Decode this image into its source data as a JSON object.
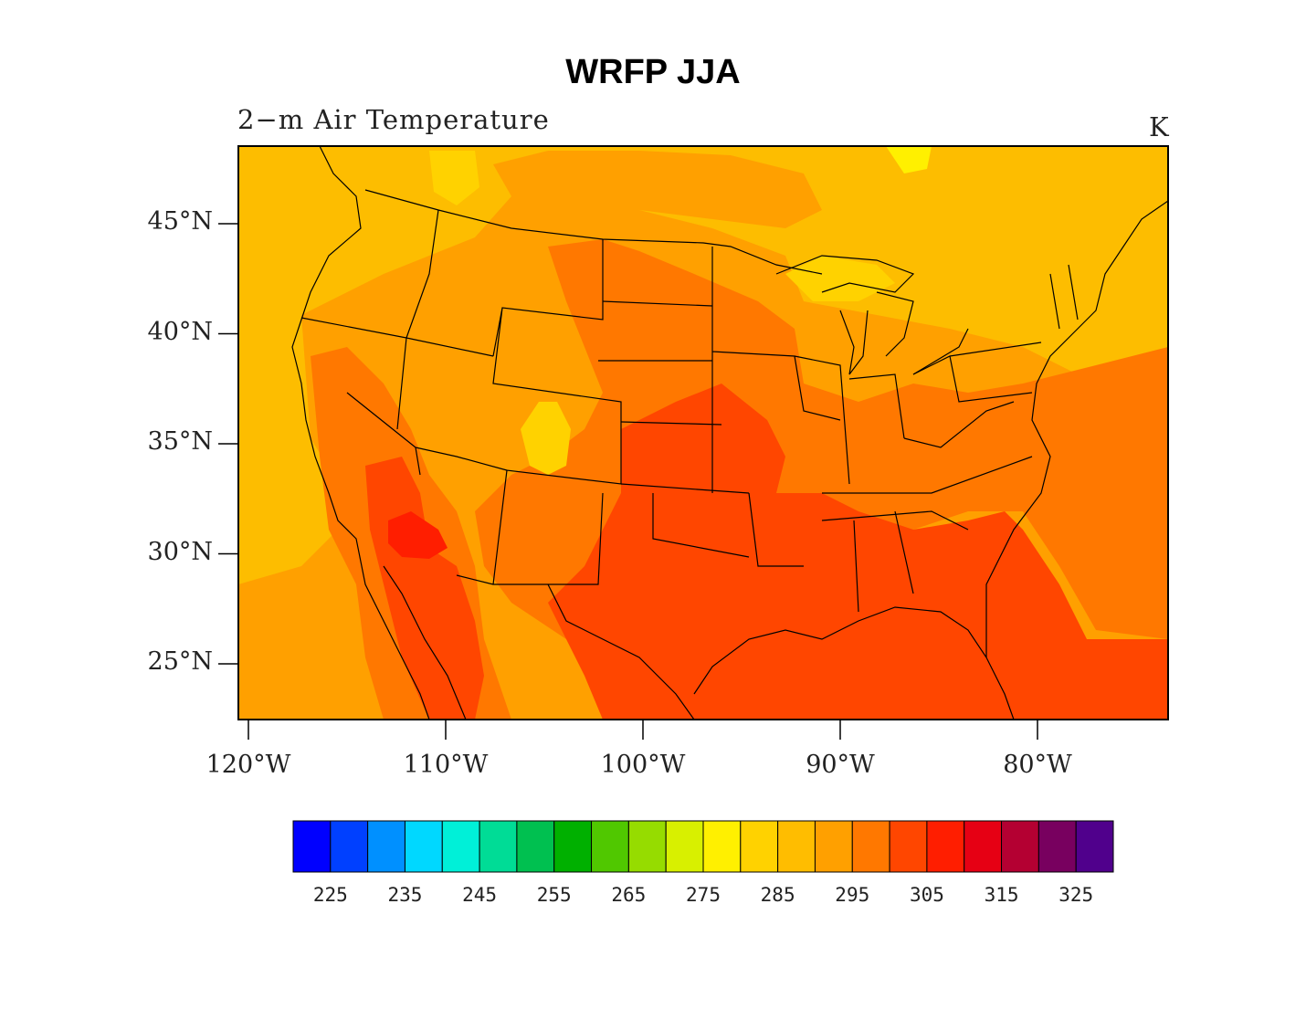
{
  "map": {
    "title": "WRFP JJA",
    "left_string": "2−m Air Temperature",
    "right_string": "K",
    "lat_ticks": [
      {
        "label": "45°N",
        "lat": 45
      },
      {
        "label": "40°N",
        "lat": 40
      },
      {
        "label": "35°N",
        "lat": 35
      },
      {
        "label": "30°N",
        "lat": 30
      },
      {
        "label": "25°N",
        "lat": 25
      }
    ],
    "lon_ticks": [
      {
        "label": "120°W",
        "lon": -120
      },
      {
        "label": "110°W",
        "lon": -110
      },
      {
        "label": "100°W",
        "lon": -100
      },
      {
        "label": "90°W",
        "lon": -90
      },
      {
        "label": "80°W",
        "lon": -80
      }
    ],
    "background_color": "#fdbd00"
  },
  "colorbar": {
    "colors": [
      "#0000ff",
      "#0040ff",
      "#0090ff",
      "#00d8ff",
      "#00f0d8",
      "#00dc96",
      "#00c050",
      "#00b000",
      "#50c800",
      "#96dc00",
      "#d8f000",
      "#fff000",
      "#ffd200",
      "#ffbd00",
      "#ffa000",
      "#ff7800",
      "#ff4600",
      "#ff1e00",
      "#e60014",
      "#b40032",
      "#78005f",
      "#50008c"
    ],
    "labels": [
      "225",
      "235",
      "245",
      "255",
      "265",
      "275",
      "285",
      "295",
      "305",
      "315",
      "325"
    ]
  }
}
